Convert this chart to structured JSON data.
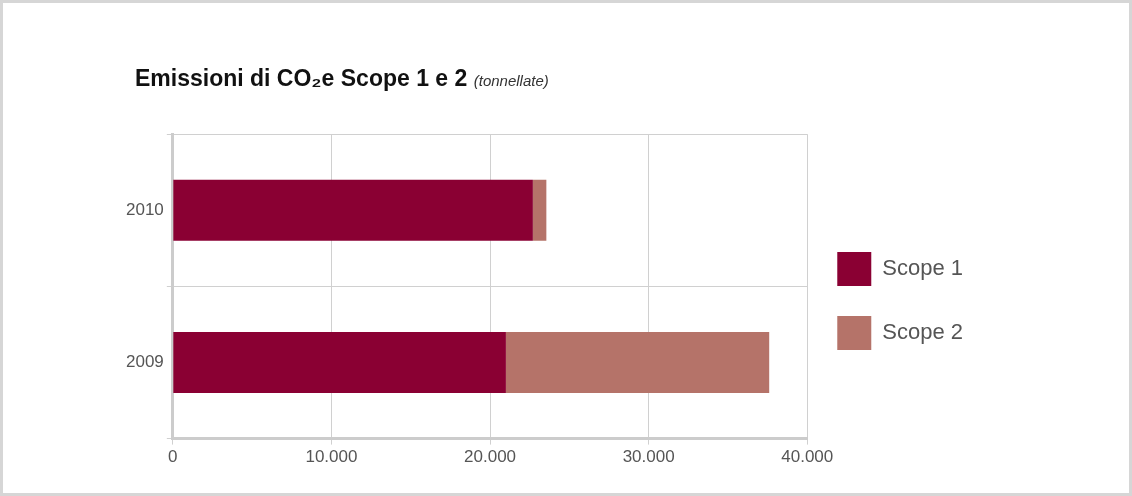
{
  "chart_data": {
    "type": "bar",
    "title": "Emissioni di CO₂e Scope 1 e 2",
    "subtitle": "(tonnellate)",
    "orientation": "horizontal",
    "stacked": true,
    "categories": [
      "2010",
      "2009"
    ],
    "series": [
      {
        "name": "Scope 1",
        "color": "#8a0033",
        "values": [
          22700,
          21000
        ]
      },
      {
        "name": "Scope 2",
        "color": "#b57369",
        "values": [
          850,
          16600
        ]
      }
    ],
    "xlim": [
      0,
      40000
    ],
    "xticks": [
      0,
      {
        "value": 10000,
        "label": "10.000"
      },
      {
        "value": 20000,
        "label": "20.000"
      },
      {
        "value": 30000,
        "label": "30.000"
      },
      {
        "value": 40000,
        "label": "40.000"
      }
    ],
    "grid": true,
    "legend": "right"
  }
}
